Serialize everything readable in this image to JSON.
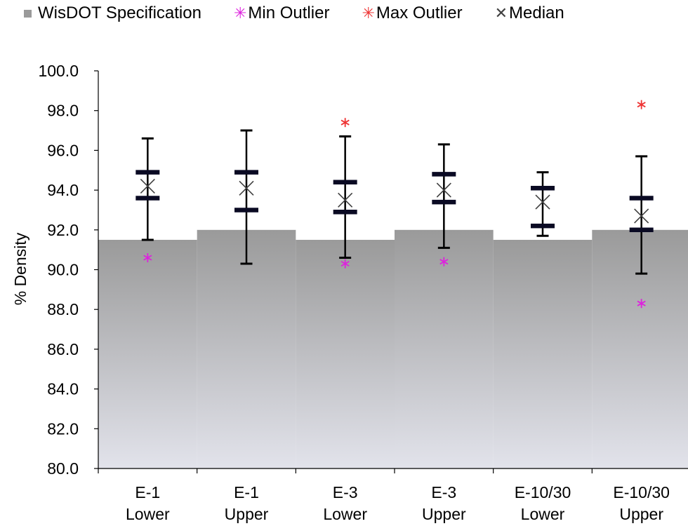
{
  "chart_data": {
    "type": "box",
    "ylabel": "% Density",
    "ylim": [
      80,
      100
    ],
    "yticks": [
      "80.0",
      "82.0",
      "84.0",
      "86.0",
      "88.0",
      "90.0",
      "92.0",
      "94.0",
      "96.0",
      "98.0",
      "100.0"
    ],
    "categories": [
      {
        "line1": "E-1",
        "line2": "Lower"
      },
      {
        "line1": "E-1",
        "line2": "Upper"
      },
      {
        "line1": "E-3",
        "line2": "Lower"
      },
      {
        "line1": "E-3",
        "line2": "Upper"
      },
      {
        "line1": "E-10/30",
        "line2": "Lower"
      },
      {
        "line1": "E-10/30",
        "line2": "Upper"
      }
    ],
    "legend": {
      "spec": "WisDOT Specification",
      "min_outlier": "Min Outlier",
      "max_outlier": "Max Outlier",
      "median": "Median"
    },
    "legend_placement": "top",
    "grid": false,
    "colors": {
      "spec_top": "#9a9a9a",
      "spec_bottom": "#e2e3eb",
      "min_outlier": "#dd22dd",
      "max_outlier": "#ee3333",
      "median": "#404040",
      "whisker": "#000000",
      "quartile": "#0a0a23"
    },
    "spec": [
      91.5,
      92.0,
      91.5,
      92.0,
      91.5,
      92.0
    ],
    "whisker_low": [
      91.5,
      90.3,
      90.6,
      91.1,
      91.7,
      89.8
    ],
    "whisker_high": [
      96.6,
      97.0,
      96.7,
      96.3,
      94.9,
      95.7
    ],
    "q1": [
      93.6,
      93.0,
      92.9,
      93.4,
      92.2,
      92.0
    ],
    "q3": [
      94.9,
      94.9,
      94.4,
      94.8,
      94.1,
      93.6
    ],
    "median": [
      94.2,
      94.1,
      93.5,
      94.0,
      93.4,
      92.7
    ],
    "min_outliers": [
      [
        90.6
      ],
      [],
      [
        90.3
      ],
      [
        90.4
      ],
      [],
      [
        88.3
      ]
    ],
    "max_outliers": [
      [],
      [],
      [
        97.4
      ],
      [],
      [],
      [
        98.3
      ]
    ]
  }
}
